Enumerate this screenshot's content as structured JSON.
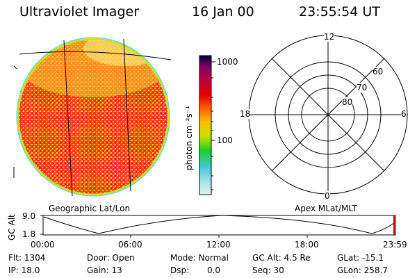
{
  "header": {
    "instrument": "Ultraviolet Imager",
    "date": "16 Jan 00",
    "time": "23:55:54 UT"
  },
  "colorbar": {
    "unit_label": "photon cm⁻²s⁻¹",
    "ticks": [
      "1000",
      "100"
    ],
    "scale": "log"
  },
  "geo_panel": {
    "caption": "Geographic Lat/Lon"
  },
  "polar_panel": {
    "caption": "Apex MLat/MLT",
    "mlt_labels": [
      "12",
      "18",
      "6",
      "0"
    ],
    "mlat_labels": [
      "60",
      "70",
      "80"
    ]
  },
  "altitude_plot": {
    "ylabel": "GC Alt",
    "y_ticks": [
      "9.0",
      "1.8"
    ],
    "x_ticks": [
      "00:00",
      "06:00",
      "12:00",
      "18:00",
      "23:59"
    ],
    "marker_color": "#cc0000"
  },
  "status": {
    "row1": [
      {
        "key": "Flt:",
        "value": "1304"
      },
      {
        "key": "Door:",
        "value": "Open"
      },
      {
        "key": "Mode:",
        "value": "Normal"
      },
      {
        "key": "GC Alt:",
        "value": "4.5 Re"
      },
      {
        "key": "GLat:",
        "value": "-15.1"
      }
    ],
    "row2": [
      {
        "key": "IP:",
        "value": "18.0"
      },
      {
        "key": "Gain:",
        "value": "13"
      },
      {
        "key": "Dsp:",
        "value": "0.0"
      },
      {
        "key": "Seq:",
        "value": "30"
      },
      {
        "key": "GLon:",
        "value": "258.7"
      }
    ]
  },
  "colors": {
    "colorbar_stops": [
      "#e8f0f0",
      "#40c8d8",
      "#20d020",
      "#c8e000",
      "#ffc000",
      "#ff6000",
      "#e00000",
      "#c00040",
      "#800060",
      "#000040"
    ],
    "disk_base": "#ff4020",
    "disk_speckle": "#ffa030",
    "disk_edge": "#c8e030"
  }
}
